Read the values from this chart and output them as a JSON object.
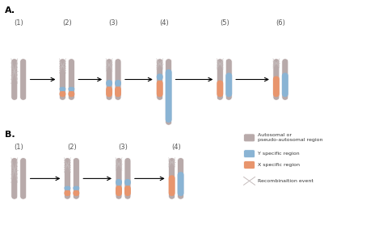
{
  "background": "#ffffff",
  "color_autosomal": "#b8aaaa",
  "color_y": "#8ab4d4",
  "color_x": "#e8956d",
  "label_A": "A.",
  "label_B": "B.",
  "section_A_labels": [
    "(1)",
    "(2)",
    "(3)",
    "(4)",
    "(5)",
    "(6)"
  ],
  "section_B_labels": [
    "(1)",
    "(2)",
    "(3)",
    "(4)"
  ],
  "legend_labels": [
    "Autosomal or\npseudo-autosomal region",
    "Y specific region",
    "X specific region",
    "Recombinaition event"
  ],
  "font_size_section": 8,
  "font_size_number": 6
}
